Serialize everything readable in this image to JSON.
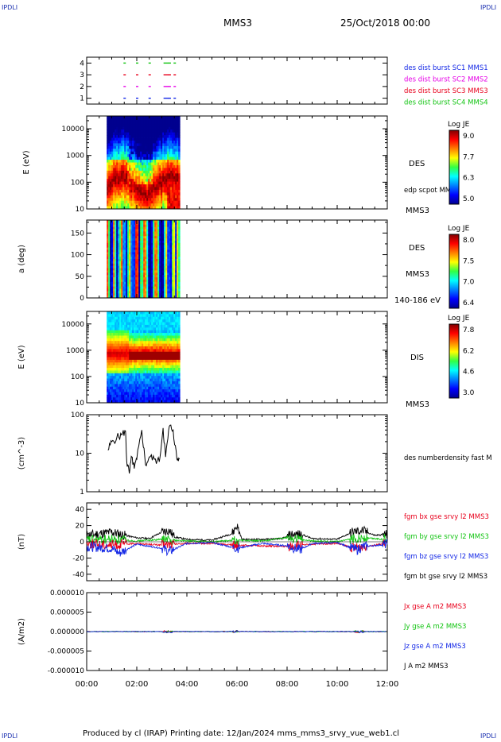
{
  "corner_label": "IPDLI",
  "header": {
    "spacecraft": "MMS3",
    "datetime": "25/Oct/2018 00:00"
  },
  "footer": {
    "text": "Produced by cl (IRAP)   Printing date: 12/Jan/2024   mms_mms3_srvy_vue_web1.cl"
  },
  "colors": {
    "red": "#e8001c",
    "green": "#12c412",
    "blue": "#1428e6",
    "magenta": "#e600e6",
    "black": "#000000"
  },
  "time_axis": {
    "labels": [
      "00:00",
      "02:00",
      "04:00",
      "06:00",
      "08:00",
      "10:00",
      "12:00"
    ],
    "range_hours": [
      0,
      12
    ]
  },
  "chart_data": [
    {
      "type": "scatter",
      "title": "burst flags",
      "yticks": [
        "1",
        "2",
        "3",
        "4"
      ],
      "ylim": [
        0.5,
        4.5
      ],
      "series": [
        {
          "name": "des dist burst SC1 MMS1",
          "color": "#1428e6",
          "y": 1
        },
        {
          "name": "des dist burst SC2 MMS2",
          "color": "#e600e6",
          "y": 2
        },
        {
          "name": "des dist burst SC3 MMS3",
          "color": "#e8001c",
          "y": 3
        },
        {
          "name": "des dist burst SC4 MMS4",
          "color": "#12c412",
          "y": 4
        }
      ],
      "x_hours": [
        1.5,
        2.0,
        2.5,
        3.1,
        3.3,
        3.5
      ]
    },
    {
      "type": "heatmap",
      "ylabel": "E (eV)",
      "yticks": [
        "10",
        "100",
        "1000",
        "10000"
      ],
      "right_labels": [
        "DES",
        "edp scpot MMS3",
        "MMS3"
      ],
      "colorbar": {
        "title": "Log JE",
        "ticks": [
          "9.0",
          "7.7",
          "6.3",
          "5.0"
        ]
      },
      "data_range_hours": [
        0.8,
        3.7
      ]
    },
    {
      "type": "heatmap",
      "ylabel": "a (deg)",
      "yticks": [
        "0",
        "50",
        "100",
        "150"
      ],
      "right_labels": [
        "DES",
        "MMS3",
        "140-186 eV"
      ],
      "colorbar": {
        "title": "Log JE",
        "ticks": [
          "8.0",
          "7.5",
          "7.0",
          "6.4"
        ]
      },
      "data_range_hours": [
        0.8,
        3.7
      ]
    },
    {
      "type": "heatmap",
      "ylabel": "E (eV)",
      "yticks": [
        "10",
        "100",
        "1000",
        "10000"
      ],
      "right_labels": [
        "DIS",
        "MMS3"
      ],
      "colorbar": {
        "title": "Log JE",
        "ticks": [
          "7.8",
          "6.2",
          "4.6",
          "3.0"
        ]
      },
      "data_range_hours": [
        0.8,
        3.7
      ]
    },
    {
      "type": "line",
      "ylabel": "(cm^-3)",
      "yticks": [
        "1",
        "10",
        "100"
      ],
      "ylim": [
        1,
        100
      ],
      "log": true,
      "right_labels": [
        "des numberdensity fast M"
      ],
      "series": [
        {
          "name": "des numberdensity fast M",
          "color": "#000000",
          "x": [
            0.85,
            1.0,
            1.2,
            1.4,
            1.55,
            1.6,
            1.7,
            1.8,
            1.9,
            2.0,
            2.2,
            2.35,
            2.5,
            2.7,
            2.9,
            3.05,
            3.15,
            3.3,
            3.45,
            3.6,
            3.7
          ],
          "y": [
            12,
            20,
            25,
            30,
            38,
            6,
            3,
            8,
            4,
            7,
            40,
            5,
            8,
            7,
            6,
            45,
            8,
            50,
            40,
            7,
            7
          ]
        }
      ]
    },
    {
      "type": "line",
      "ylabel": "(nT)",
      "yticks": [
        "-40",
        "-20",
        "0",
        "20",
        "40"
      ],
      "ylim": [
        -48,
        48
      ],
      "right_labels": [
        "fgm bx gse srvy l2 MMS3",
        "fgm by gse srvy l2 MMS3",
        "fgm bz gse srvy l2 MMS3",
        "fgm bt gse srvy l2 MMS3"
      ],
      "series": [
        {
          "name": "fgm bt gse srvy l2 MMS3",
          "color": "#000000",
          "x": [
            0,
            0.5,
            1.0,
            1.5,
            2.0,
            2.5,
            3.0,
            3.3,
            3.5,
            4,
            5,
            5.8,
            6.0,
            6.2,
            7,
            7.8,
            8.2,
            8.6,
            9,
            10,
            10.6,
            11,
            11.5,
            12
          ],
          "y": [
            8,
            10,
            12,
            8,
            5,
            4,
            12,
            14,
            6,
            3,
            2,
            10,
            20,
            3,
            3,
            4,
            9,
            9,
            4,
            3,
            12,
            14,
            8,
            9
          ]
        },
        {
          "name": "fgm by gse srvy l2 MMS3",
          "color": "#12c412",
          "x": [
            0,
            1,
            2,
            3,
            4,
            5,
            6,
            7,
            8,
            8.5,
            9,
            10,
            10.7,
            11,
            12
          ],
          "y": [
            2,
            3,
            1,
            3,
            1,
            0,
            2,
            1,
            5,
            3,
            1,
            0,
            4,
            5,
            3
          ]
        },
        {
          "name": "fgm bx gse srvy l2 MMS3",
          "color": "#e8001c",
          "x": [
            0,
            1,
            2,
            3,
            4,
            5,
            6,
            7,
            8,
            9,
            10,
            10.7,
            11,
            12
          ],
          "y": [
            -2,
            -4,
            -2,
            -4,
            -2,
            -2,
            -4,
            -5,
            -6,
            -3,
            -2,
            -8,
            -6,
            -2
          ]
        },
        {
          "name": "fgm bz gse srvy l2 MMS3",
          "color": "#1428e6",
          "x": [
            0,
            1,
            1.3,
            2,
            3,
            3.3,
            4,
            5,
            6,
            7,
            8,
            8.5,
            9,
            10,
            10.8,
            11,
            12
          ],
          "y": [
            -6,
            -8,
            -14,
            -3,
            -8,
            -12,
            -2,
            -1,
            -8,
            -2,
            -5,
            -10,
            -2,
            -1,
            -10,
            -6,
            -3
          ]
        }
      ]
    },
    {
      "type": "line",
      "ylabel": "(A/m2)",
      "yticks": [
        "-0.000010",
        "-0.000005",
        "0.000000",
        "0.000005",
        "0.000010"
      ],
      "ylim": [
        -1e-05,
        1e-05
      ],
      "right_labels": [
        "Jx gse A m2 MMS3",
        "Jy gse A m2 MMS3",
        "Jz gse A m2 MMS3",
        "J A m2 MMS3"
      ],
      "series": [
        {
          "name": "J A m2 MMS3",
          "color": "#000000",
          "x": [
            0,
            12
          ],
          "y": [
            0,
            0
          ]
        },
        {
          "name": "Jx gse A m2 MMS3",
          "color": "#e8001c",
          "x": [
            0,
            12
          ],
          "y": [
            0,
            0
          ]
        },
        {
          "name": "Jy gse A m2 MMS3",
          "color": "#12c412",
          "x": [
            0,
            12
          ],
          "y": [
            0,
            0
          ]
        },
        {
          "name": "Jz gse A m2 MMS3",
          "color": "#1428e6",
          "x": [
            0,
            12
          ],
          "y": [
            0,
            0
          ]
        }
      ]
    }
  ]
}
